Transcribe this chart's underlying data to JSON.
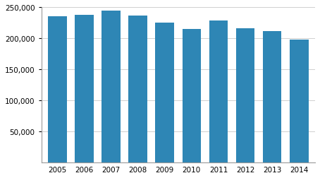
{
  "years": [
    "2005",
    "2006",
    "2007",
    "2008",
    "2009",
    "2010",
    "2011",
    "2012",
    "2013",
    "2014"
  ],
  "values": [
    235000,
    238000,
    244000,
    236000,
    225000,
    215000,
    228000,
    216000,
    211000,
    198000
  ],
  "bar_color": "#2e86b5",
  "ylim": [
    0,
    250000
  ],
  "yticks": [
    50000,
    100000,
    150000,
    200000,
    250000
  ],
  "background_color": "#ffffff",
  "grid_color": "#d0d0d0"
}
